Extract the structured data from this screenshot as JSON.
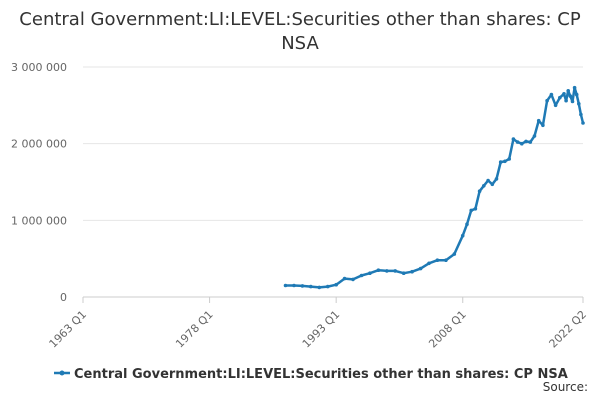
{
  "chart_data": {
    "type": "line",
    "title": "Central Government:LI:LEVEL:Securities other than shares: CP NSA",
    "xlabel": "",
    "ylabel": "",
    "x_tick_labels": [
      "1963 Q1",
      "1978 Q1",
      "1993 Q1",
      "2008 Q1",
      "2022 Q2"
    ],
    "y_tick_labels": [
      "0",
      "1 000 000",
      "2 000 000",
      "3 000 000"
    ],
    "ylim": [
      0,
      3000000
    ],
    "xlim": [
      "1963 Q1",
      "2022 Q2"
    ],
    "grid": "horizontal",
    "legend_position": "bottom",
    "color": "#1f7ab5",
    "series": [
      {
        "name": "Central Government:LI:LEVEL:Securities other than shares: CP NSA",
        "x": [
          "1987 Q1",
          "1988 Q1",
          "1989 Q1",
          "1990 Q1",
          "1991 Q1",
          "1992 Q1",
          "1993 Q1",
          "1994 Q1",
          "1995 Q1",
          "1996 Q1",
          "1997 Q1",
          "1998 Q1",
          "1999 Q1",
          "2000 Q1",
          "2001 Q1",
          "2002 Q1",
          "2003 Q1",
          "2004 Q1",
          "2005 Q1",
          "2006 Q1",
          "2007 Q1",
          "2008 Q1",
          "2008 Q3",
          "2009 Q1",
          "2009 Q3",
          "2010 Q1",
          "2010 Q3",
          "2011 Q1",
          "2011 Q3",
          "2012 Q1",
          "2012 Q3",
          "2013 Q1",
          "2013 Q3",
          "2014 Q1",
          "2014 Q3",
          "2015 Q1",
          "2015 Q3",
          "2016 Q1",
          "2016 Q3",
          "2017 Q1",
          "2017 Q3",
          "2018 Q1",
          "2018 Q3",
          "2019 Q1",
          "2019 Q3",
          "2020 Q1",
          "2020 Q2",
          "2020 Q3",
          "2020 Q4",
          "2021 Q1",
          "2021 Q2",
          "2021 Q3",
          "2021 Q4",
          "2022 Q1",
          "2022 Q2"
        ],
        "values": [
          150000,
          150000,
          145000,
          135000,
          125000,
          135000,
          160000,
          240000,
          230000,
          280000,
          310000,
          350000,
          340000,
          340000,
          310000,
          330000,
          370000,
          440000,
          480000,
          480000,
          560000,
          800000,
          950000,
          1130000,
          1150000,
          1380000,
          1450000,
          1520000,
          1470000,
          1540000,
          1760000,
          1770000,
          1800000,
          2060000,
          2020000,
          2000000,
          2030000,
          2020000,
          2100000,
          2300000,
          2240000,
          2560000,
          2640000,
          2500000,
          2600000,
          2650000,
          2560000,
          2690000,
          2620000,
          2550000,
          2730000,
          2640000,
          2520000,
          2380000,
          2270000
        ]
      }
    ]
  },
  "legend_label": "Central Government:LI:LEVEL:Securities other than shares: CP NSA",
  "source_label": "Source:"
}
